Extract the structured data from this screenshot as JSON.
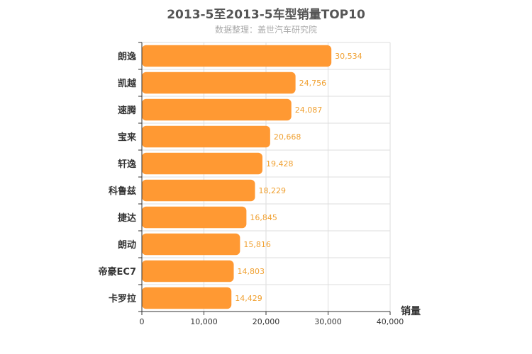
{
  "chart_data": {
    "type": "bar",
    "orientation": "horizontal",
    "title": "2013-5至2013-5车型销量TOP10",
    "subtitle": "数据整理：盖世汽车研究院",
    "xlabel": "销量",
    "ylabel": "",
    "categories": [
      "朗逸",
      "凯越",
      "速腾",
      "宝来",
      "轩逸",
      "科鲁兹",
      "捷达",
      "朗动",
      "帝豪EC7",
      "卡罗拉"
    ],
    "values": [
      30534,
      24756,
      24087,
      20668,
      19428,
      18229,
      16845,
      15816,
      14803,
      14429
    ],
    "value_labels": [
      "30,534",
      "24,756",
      "24,087",
      "20,668",
      "19,428",
      "18,229",
      "16,845",
      "15,816",
      "14,803",
      "14,429"
    ],
    "xlim": [
      0,
      40000
    ],
    "xticks": [
      0,
      10000,
      20000,
      30000,
      40000
    ],
    "xtick_labels": [
      "0",
      "10,000",
      "20,000",
      "30,000",
      "40,000"
    ],
    "grid": true,
    "bar_color": "#ff9933",
    "label_color": "#f0a030"
  }
}
